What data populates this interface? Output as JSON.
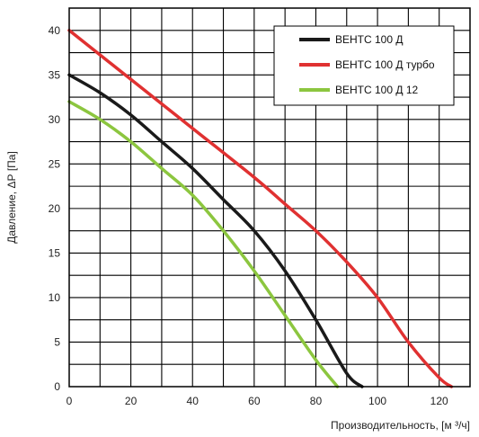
{
  "chart_data": {
    "type": "line",
    "xlabel": "Производительность, [м ³/ч]",
    "ylabel": "Давление, ΔР [Па]",
    "xlim": [
      0,
      130
    ],
    "ylim": [
      0,
      42.5
    ],
    "x_ticks": [
      "0",
      "20",
      "40",
      "60",
      "80",
      "100",
      "120"
    ],
    "y_ticks": [
      "0",
      "5",
      "10",
      "15",
      "20",
      "25",
      "30",
      "35",
      "40"
    ],
    "grid": true,
    "legend_position": "top-right",
    "series": [
      {
        "name": "ВЕНТС 100 Д",
        "color": "#1a1a1a",
        "points": [
          [
            0,
            35
          ],
          [
            10,
            33
          ],
          [
            20,
            30.5
          ],
          [
            30,
            27.5
          ],
          [
            40,
            24.5
          ],
          [
            50,
            21
          ],
          [
            60,
            17.5
          ],
          [
            70,
            13
          ],
          [
            80,
            7.5
          ],
          [
            90,
            1.5
          ],
          [
            95,
            0
          ]
        ]
      },
      {
        "name": "ВЕНТС 100 Д турбо",
        "color": "#e03131",
        "points": [
          [
            0,
            40
          ],
          [
            20,
            34.5
          ],
          [
            40,
            29
          ],
          [
            60,
            23.5
          ],
          [
            70,
            20.5
          ],
          [
            80,
            17.5
          ],
          [
            90,
            14
          ],
          [
            100,
            10
          ],
          [
            110,
            5
          ],
          [
            120,
            1
          ],
          [
            124,
            0
          ]
        ]
      },
      {
        "name": "ВЕНТС 100 Д 12",
        "color": "#8cc63f",
        "points": [
          [
            0,
            32
          ],
          [
            10,
            30
          ],
          [
            20,
            27.5
          ],
          [
            30,
            24.5
          ],
          [
            40,
            21.5
          ],
          [
            50,
            17.5
          ],
          [
            60,
            13
          ],
          [
            70,
            8
          ],
          [
            80,
            3
          ],
          [
            87,
            0
          ]
        ]
      }
    ]
  }
}
